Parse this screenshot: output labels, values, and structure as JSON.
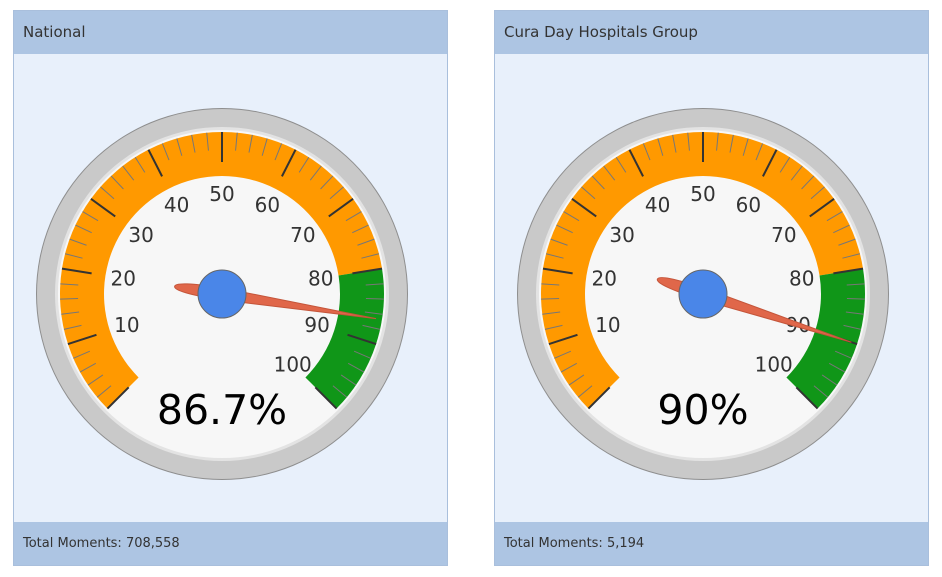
{
  "panels": [
    {
      "title": "National",
      "value_text": "86.7%",
      "value": 86.7,
      "footer": "Total Moments: 708,558"
    },
    {
      "title": "Cura Day Hospitals Group",
      "value_text": "90%",
      "value": 90,
      "footer": "Total Moments: 5,194"
    }
  ],
  "chart_data": [
    {
      "type": "gauge",
      "title": "National",
      "value": 86.7,
      "range": [
        0,
        100
      ],
      "tick_labels": [
        "10",
        "20",
        "30",
        "40",
        "50",
        "60",
        "70",
        "80",
        "90",
        "100"
      ],
      "bands": [
        {
          "from": 0,
          "to": 80,
          "color": "#ff9900"
        },
        {
          "from": 80,
          "to": 100,
          "color": "#109618"
        }
      ]
    },
    {
      "type": "gauge",
      "title": "Cura Day Hospitals Group",
      "value": 90,
      "range": [
        0,
        100
      ],
      "tick_labels": [
        "10",
        "20",
        "30",
        "40",
        "50",
        "60",
        "70",
        "80",
        "90",
        "100"
      ],
      "bands": [
        {
          "from": 0,
          "to": 80,
          "color": "#ff9900"
        },
        {
          "from": 80,
          "to": 100,
          "color": "#109618"
        }
      ]
    }
  ],
  "colors": {
    "needle": "#e0674a",
    "hub": "#4a86e8",
    "bezel": "#c9c9c9",
    "face": "#f7f7f7"
  }
}
